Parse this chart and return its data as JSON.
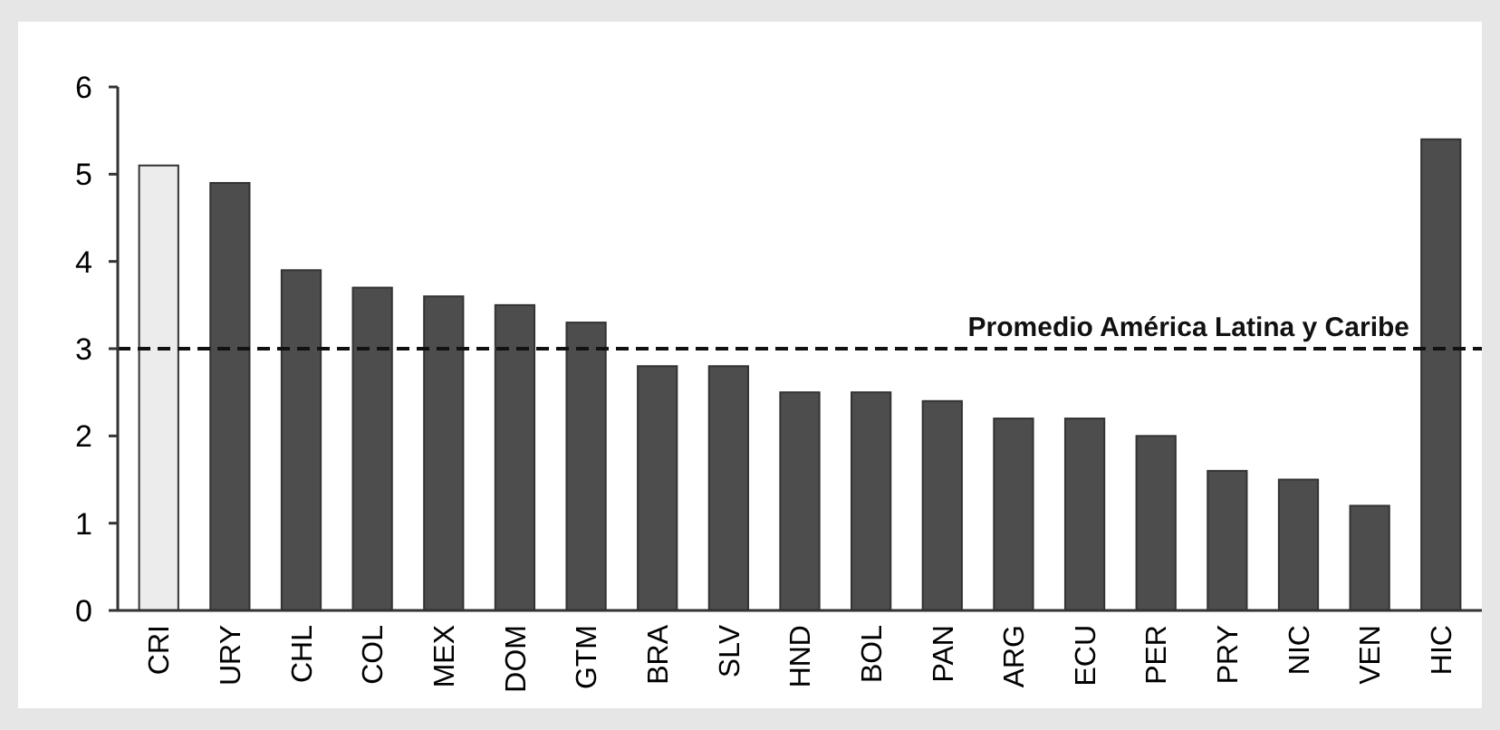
{
  "chart_data": {
    "type": "bar",
    "categories": [
      "CRI",
      "URY",
      "CHL",
      "COL",
      "MEX",
      "DOM",
      "GTM",
      "BRA",
      "SLV",
      "HND",
      "BOL",
      "PAN",
      "ARG",
      "ECU",
      "PER",
      "PRY",
      "NIC",
      "VEN",
      "HIC"
    ],
    "values": [
      5.1,
      4.9,
      3.9,
      3.7,
      3.6,
      3.5,
      3.3,
      2.8,
      2.8,
      2.5,
      2.5,
      2.4,
      2.2,
      2.2,
      2.0,
      1.6,
      1.5,
      1.2,
      5.4
    ],
    "colors": [
      "#ececec",
      "#4d4d4d",
      "#4d4d4d",
      "#4d4d4d",
      "#4d4d4d",
      "#4d4d4d",
      "#4d4d4d",
      "#4d4d4d",
      "#4d4d4d",
      "#4d4d4d",
      "#4d4d4d",
      "#4d4d4d",
      "#4d4d4d",
      "#4d4d4d",
      "#4d4d4d",
      "#4d4d4d",
      "#4d4d4d",
      "#4d4d4d",
      "#4d4d4d"
    ],
    "ylim": [
      0,
      6
    ],
    "yticks": [
      0,
      1,
      2,
      3,
      4,
      5,
      6
    ],
    "ref_lines": [
      {
        "axis": "y",
        "value": 3,
        "label": "Promedio América Latina y Caribe",
        "color": "#111111",
        "line_style": "dashed"
      }
    ],
    "grid": false
  }
}
